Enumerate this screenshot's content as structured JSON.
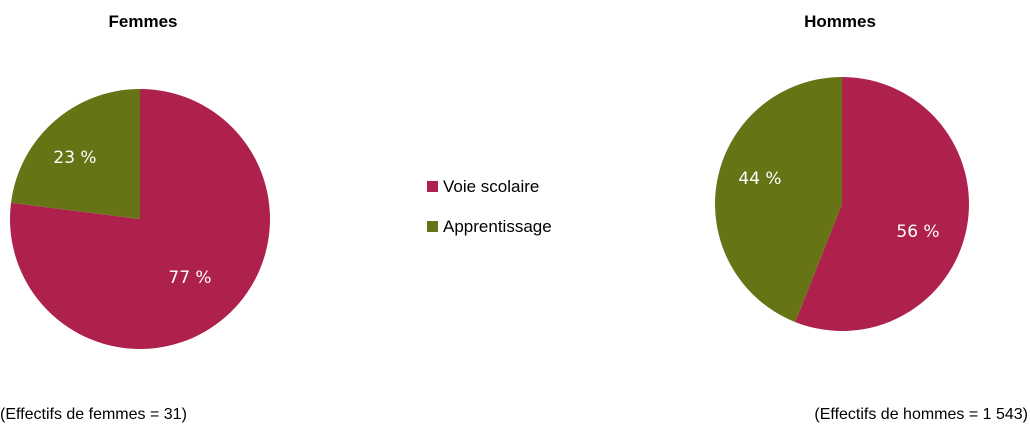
{
  "colors": {
    "voie_scolaire": "#ae214c",
    "apprentissage": "#667416"
  },
  "legend": {
    "items": [
      {
        "label": "Voie scolaire",
        "color": "#ae214c"
      },
      {
        "label": "Apprentissage",
        "color": "#667416"
      }
    ]
  },
  "notes": {
    "femmes": "(Effectifs de femmes = 31)",
    "hommes": "(Effectifs de hommes = 1 543)"
  },
  "chart_data": [
    {
      "type": "pie",
      "title": "Femmes",
      "categories": [
        "Voie scolaire",
        "Apprentissage"
      ],
      "values": [
        77,
        23
      ],
      "labels": [
        "77 %",
        "23 %"
      ]
    },
    {
      "type": "pie",
      "title": "Hommes",
      "categories": [
        "Voie scolaire",
        "Apprentissage"
      ],
      "values": [
        56,
        44
      ],
      "labels": [
        "56 %",
        "44 %"
      ]
    }
  ]
}
